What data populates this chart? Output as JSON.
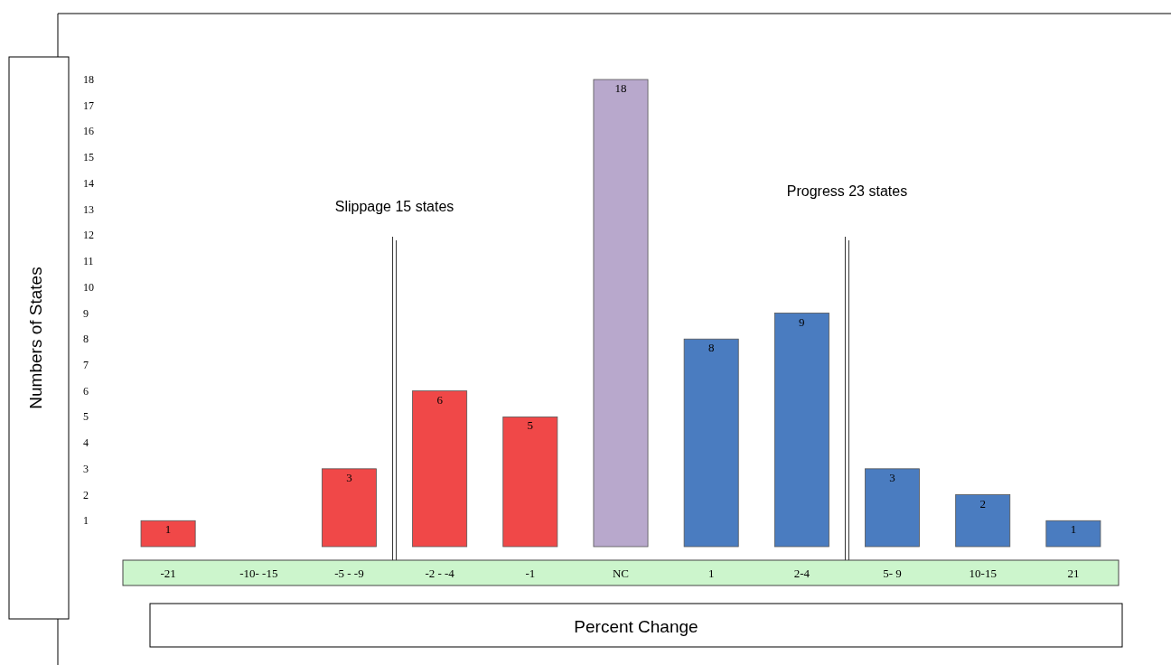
{
  "chart_data": {
    "type": "bar",
    "xlabel": "Percent Change",
    "ylabel": "Numbers of States",
    "categories": [
      "-21",
      "-10- -15",
      "-5 - -9",
      "-2 - -4",
      "-1",
      "NC",
      "1",
      "2-4",
      "5- 9",
      "10-15",
      "21"
    ],
    "values": [
      1,
      null,
      3,
      6,
      5,
      18,
      8,
      9,
      3,
      2,
      1
    ],
    "colors": [
      "#f04848",
      null,
      "#f04848",
      "#f04848",
      "#f04848",
      "#b8a8cc",
      "#4a7cc0",
      "#4a7cc0",
      "#4a7cc0",
      "#4a7cc0",
      "#4a7cc0"
    ],
    "ylim": [
      0,
      18
    ],
    "yticks": [
      1,
      2,
      3,
      4,
      5,
      6,
      7,
      8,
      9,
      10,
      11,
      12,
      13,
      14,
      15,
      16,
      17,
      18
    ],
    "data_labels": true,
    "grid": false,
    "annotations": [
      "Slippage 15 states",
      "Progress 23 states"
    ]
  }
}
